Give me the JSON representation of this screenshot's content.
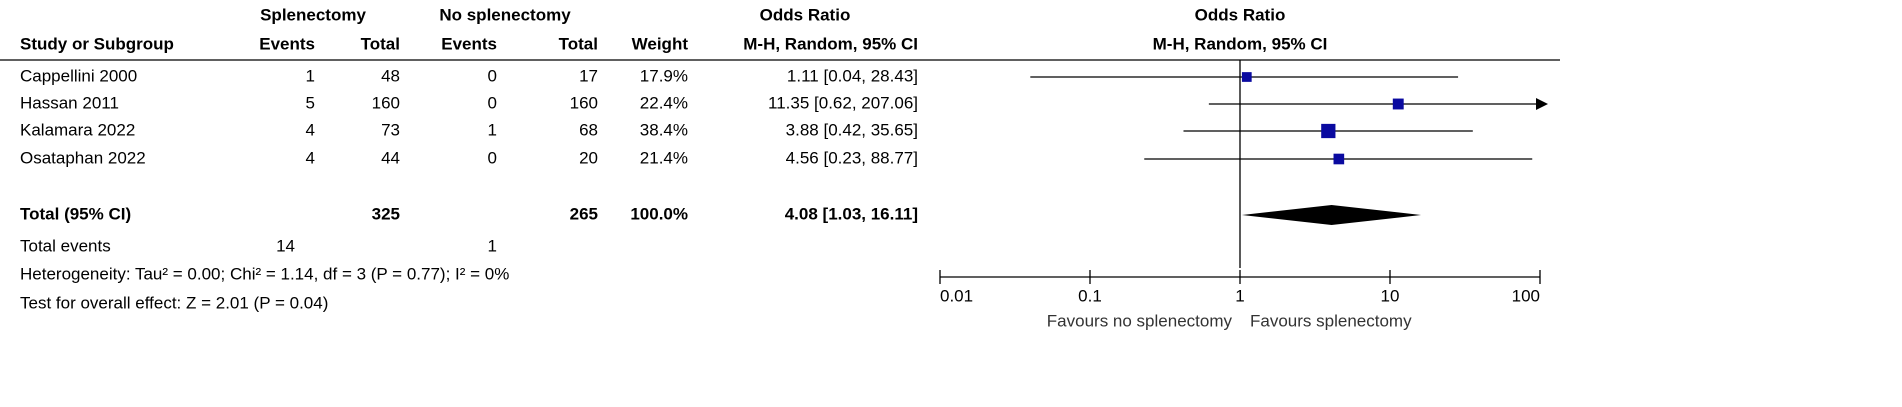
{
  "chart_data": {
    "type": "forest",
    "title": "Odds Ratio",
    "subtitle": "M-H, Random, 95% CI",
    "group_headers": [
      "Splenectomy",
      "No splenectomy",
      "Odds Ratio"
    ],
    "column_headers": [
      "Study or Subgroup",
      "Events",
      "Total",
      "Events",
      "Total",
      "Weight",
      "M-H, Random, 95% CI"
    ],
    "studies": [
      {
        "name": "Cappellini 2000",
        "events_1": 1,
        "total_1": 48,
        "events_2": 0,
        "total_2": 17,
        "weight": 17.9,
        "weight_label": "17.9%",
        "or": 1.11,
        "ci_low": 0.04,
        "ci_high": 28.43,
        "ci_label": "1.11 [0.04, 28.43]"
      },
      {
        "name": "Hassan 2011",
        "events_1": 5,
        "total_1": 160,
        "events_2": 0,
        "total_2": 160,
        "weight": 22.4,
        "weight_label": "22.4%",
        "or": 11.35,
        "ci_low": 0.62,
        "ci_high": 207.06,
        "ci_label": "11.35 [0.62, 207.06]"
      },
      {
        "name": "Kalamara 2022",
        "events_1": 4,
        "total_1": 73,
        "events_2": 1,
        "total_2": 68,
        "weight": 38.4,
        "weight_label": "38.4%",
        "or": 3.88,
        "ci_low": 0.42,
        "ci_high": 35.65,
        "ci_label": "3.88 [0.42, 35.65]"
      },
      {
        "name": "Osataphan 2022",
        "events_1": 4,
        "total_1": 44,
        "events_2": 0,
        "total_2": 20,
        "weight": 21.4,
        "weight_label": "21.4%",
        "or": 4.56,
        "ci_low": 0.23,
        "ci_high": 88.77,
        "ci_label": "4.56 [0.23, 88.77]"
      }
    ],
    "total": {
      "name": "Total (95% CI)",
      "total_1": 325,
      "total_2": 265,
      "weight": 100.0,
      "weight_label": "100.0%",
      "or": 4.08,
      "ci_low": 1.03,
      "ci_high": 16.11,
      "ci_label": "4.08 [1.03, 16.11]"
    },
    "total_events": {
      "name": "Total events",
      "events_1": 14,
      "events_2": 1
    },
    "heterogeneity": "Heterogeneity: Tau² = 0.00; Chi² = 1.14, df = 3 (P = 0.77); I² = 0%",
    "overall_effect": "Test for overall effect: Z = 2.01 (P = 0.04)",
    "x_labels": [
      "Favours no splenectomy",
      "Favours splenectomy"
    ],
    "xlim": [
      0.01,
      100
    ],
    "xticks": [
      0.01,
      0.1,
      1,
      10,
      100
    ],
    "log_scale": true,
    "reference_line": 1,
    "color": "#0a0aa0"
  }
}
